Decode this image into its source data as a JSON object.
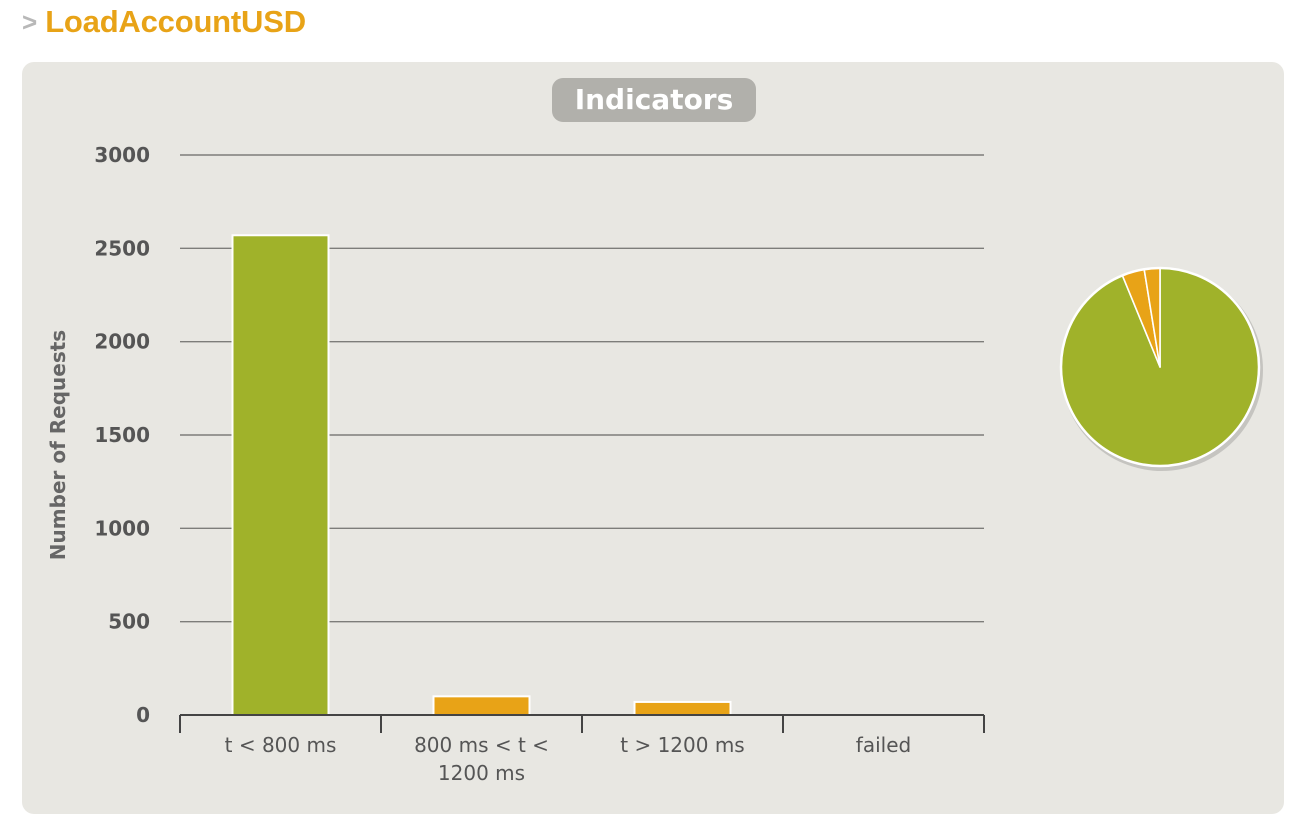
{
  "header": {
    "arrow": ">",
    "title": "LoadAccountUSD"
  },
  "chart_data": {
    "type": "bar",
    "title": "Indicators",
    "xlabel": "",
    "ylabel": "Number of Requests",
    "categories": [
      "t < 800 ms",
      "800 ms < t < 1200 ms",
      "t > 1200 ms",
      "failed"
    ],
    "category_lines": [
      [
        "t < 800 ms"
      ],
      [
        "800 ms < t <",
        "1200 ms"
      ],
      [
        "t > 1200 ms"
      ],
      [
        "failed"
      ]
    ],
    "values": [
      2570,
      100,
      70,
      0
    ],
    "bar_colors": [
      "#a0b22a",
      "#e8a317",
      "#e8a317",
      "#e8a317"
    ],
    "ylim": [
      0,
      3000
    ],
    "yticks": [
      0,
      500,
      1000,
      1500,
      2000,
      2500,
      3000
    ],
    "grid": true,
    "legend": "none",
    "pie": {
      "type": "pie",
      "values": [
        2570,
        100,
        70,
        0
      ],
      "colors": [
        "#a0b22a",
        "#e8a317",
        "#e8a317",
        "#e8a317"
      ]
    }
  }
}
